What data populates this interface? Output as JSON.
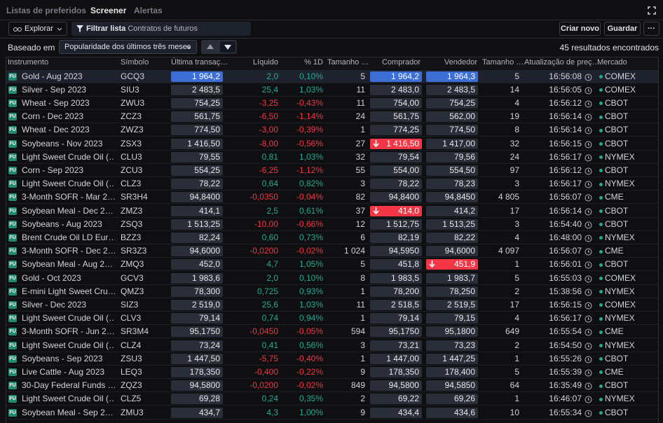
{
  "tabs": [
    "Listas de preferidos",
    "Screener",
    "Alertas"
  ],
  "active_tab": 1,
  "toolbar": {
    "explore": "Explorar",
    "filter_label": "Filtrar lista",
    "filter_value": "Contratos de futuros",
    "buttons": [
      "Criar novo",
      "Guardar",
      "···"
    ]
  },
  "based_on": {
    "label": "Baseado em",
    "value": "Popularidade dos últimos três meses",
    "results": "45 resultados encontrados"
  },
  "badge": "FU",
  "table": {
    "columns": [
      "Instrumento",
      "Símbolo",
      "Última transaç…",
      "Líquido",
      "% 1D",
      "Tamanho …",
      "Comprador",
      "Vendedor",
      "Tamanho …",
      "Atualização de preç…",
      "Mercado"
    ],
    "rows": [
      {
        "instrument": "Gold - Aug 2023",
        "symbol": "GCQ3",
        "last": "1 964,2",
        "net": "2,0",
        "pct": "0,10%",
        "size": "5",
        "bid": "1 964,2",
        "ask": "1 964,3",
        "ask_size": "5",
        "time": "16:56:08",
        "market": "COMEX",
        "selected": true,
        "highlight": {
          "last": "blue",
          "bid": "blue",
          "ask": "blue"
        }
      },
      {
        "instrument": "Silver - Sep 2023",
        "symbol": "SIU3",
        "last": "2 483,5",
        "net": "25,4",
        "pct": "1,03%",
        "size": "11",
        "bid": "2 483,0",
        "ask": "2 483,5",
        "ask_size": "14",
        "time": "16:56:05",
        "market": "COMEX"
      },
      {
        "instrument": "Wheat - Sep 2023",
        "symbol": "ZWU3",
        "last": "754,25",
        "net": "-3,25",
        "pct": "-0,43%",
        "size": "11",
        "bid": "754,00",
        "ask": "754,25",
        "ask_size": "4",
        "time": "16:56:12",
        "market": "CBOT"
      },
      {
        "instrument": "Corn - Dec 2023",
        "symbol": "ZCZ3",
        "last": "561,75",
        "net": "-6,50",
        "pct": "-1,14%",
        "size": "24",
        "bid": "561,75",
        "ask": "562,00",
        "ask_size": "19",
        "time": "16:56:14",
        "market": "CBOT"
      },
      {
        "instrument": "Wheat - Dec 2023",
        "symbol": "ZWZ3",
        "last": "774,50",
        "net": "-3,00",
        "pct": "-0,39%",
        "size": "1",
        "bid": "774,25",
        "ask": "774,50",
        "ask_size": "8",
        "time": "16:56:14",
        "market": "CBOT"
      },
      {
        "instrument": "Soybeans - Nov 2023",
        "symbol": "ZSX3",
        "last": "1 416,50",
        "net": "-8,00",
        "pct": "-0,56%",
        "size": "27",
        "bid": "1 416,50",
        "ask": "1 417,00",
        "ask_size": "32",
        "time": "16:56:15",
        "market": "CBOT",
        "highlight": {
          "bid": "down"
        }
      },
      {
        "instrument": "Light Sweet Crude Oil (…",
        "symbol": "CLU3",
        "last": "79,55",
        "net": "0,81",
        "pct": "1,03%",
        "size": "32",
        "bid": "79,54",
        "ask": "79,56",
        "ask_size": "24",
        "time": "16:56:17",
        "market": "NYMEX"
      },
      {
        "instrument": "Corn - Sep 2023",
        "symbol": "ZCU3",
        "last": "554,25",
        "net": "-6,25",
        "pct": "-1,12%",
        "size": "55",
        "bid": "554,00",
        "ask": "554,50",
        "ask_size": "97",
        "time": "16:56:12",
        "market": "CBOT"
      },
      {
        "instrument": "Light Sweet Crude Oil (…",
        "symbol": "CLZ3",
        "last": "78,22",
        "net": "0,64",
        "pct": "0,82%",
        "size": "3",
        "bid": "78,22",
        "ask": "78,23",
        "ask_size": "3",
        "time": "16:56:17",
        "market": "NYMEX"
      },
      {
        "instrument": "3-Month SOFR - Mar 2…",
        "symbol": "SR3H4",
        "last": "94,8400",
        "net": "-0,0350",
        "pct": "-0,04%",
        "size": "82",
        "bid": "94,8400",
        "ask": "94,8450",
        "ask_size": "4 805",
        "time": "16:56:07",
        "market": "CME"
      },
      {
        "instrument": "Soybean Meal - Dec 2…",
        "symbol": "ZMZ3",
        "last": "414,1",
        "net": "2,5",
        "pct": "0,61%",
        "size": "37",
        "bid": "414,0",
        "ask": "414,2",
        "ask_size": "17",
        "time": "16:56:14",
        "market": "CBOT",
        "highlight": {
          "bid": "down"
        }
      },
      {
        "instrument": "Soybeans - Aug 2023",
        "symbol": "ZSQ3",
        "last": "1 513,25",
        "net": "-10,00",
        "pct": "-0,66%",
        "size": "12",
        "bid": "1 512,75",
        "ask": "1 513,25",
        "ask_size": "3",
        "time": "16:54:40",
        "market": "CBOT"
      },
      {
        "instrument": "Brent Crude Oil LD Eur…",
        "symbol": "BZZ3",
        "last": "82,24",
        "net": "0,60",
        "pct": "0,73%",
        "size": "6",
        "bid": "82,19",
        "ask": "82,22",
        "ask_size": "4",
        "time": "16:48:00",
        "market": "NYMEX"
      },
      {
        "instrument": "3-Month SOFR - Dec 2…",
        "symbol": "SR3Z3",
        "last": "94,6000",
        "net": "-0,0200",
        "pct": "-0,02%",
        "size": "1 024",
        "bid": "94,5950",
        "ask": "94,6000",
        "ask_size": "4 097",
        "time": "16:56:07",
        "market": "CME"
      },
      {
        "instrument": "Soybean Meal - Aug 2…",
        "symbol": "ZMQ3",
        "last": "452,0",
        "net": "4,7",
        "pct": "1,05%",
        "size": "5",
        "bid": "451,8",
        "ask": "451,9",
        "ask_size": "1",
        "time": "16:56:01",
        "market": "CBOT",
        "highlight": {
          "ask": "down"
        }
      },
      {
        "instrument": "Gold - Oct 2023",
        "symbol": "GCV3",
        "last": "1 983,6",
        "net": "2,0",
        "pct": "0,10%",
        "size": "8",
        "bid": "1 983,5",
        "ask": "1 983,7",
        "ask_size": "5",
        "time": "16:55:03",
        "market": "COMEX"
      },
      {
        "instrument": "E-mini Light Sweet Cru…",
        "symbol": "QMZ3",
        "last": "78,300",
        "net": "0,725",
        "pct": "0,93%",
        "size": "1",
        "bid": "78,200",
        "ask": "78,250",
        "ask_size": "2",
        "time": "15:38:56",
        "market": "NYMEX"
      },
      {
        "instrument": "Silver - Dec 2023",
        "symbol": "SIZ3",
        "last": "2 519,0",
        "net": "25,6",
        "pct": "1,03%",
        "size": "11",
        "bid": "2 518,5",
        "ask": "2 519,5",
        "ask_size": "17",
        "time": "16:56:15",
        "market": "COMEX"
      },
      {
        "instrument": "Light Sweet Crude Oil (…",
        "symbol": "CLV3",
        "last": "79,14",
        "net": "0,74",
        "pct": "0,94%",
        "size": "1",
        "bid": "79,14",
        "ask": "79,15",
        "ask_size": "4",
        "time": "16:56:17",
        "market": "NYMEX"
      },
      {
        "instrument": "3-Month SOFR - Jun 2…",
        "symbol": "SR3M4",
        "last": "95,1750",
        "net": "-0,0450",
        "pct": "-0,05%",
        "size": "594",
        "bid": "95,1750",
        "ask": "95,1800",
        "ask_size": "649",
        "time": "16:55:54",
        "market": "CME"
      },
      {
        "instrument": "Light Sweet Crude Oil (…",
        "symbol": "CLZ4",
        "last": "73,24",
        "net": "0,41",
        "pct": "0,56%",
        "size": "3",
        "bid": "73,21",
        "ask": "73,23",
        "ask_size": "2",
        "time": "16:54:50",
        "market": "NYMEX"
      },
      {
        "instrument": "Soybeans - Sep 2023",
        "symbol": "ZSU3",
        "last": "1 447,50",
        "net": "-5,75",
        "pct": "-0,40%",
        "size": "1",
        "bid": "1 447,00",
        "ask": "1 447,25",
        "ask_size": "1",
        "time": "16:55:26",
        "market": "CBOT"
      },
      {
        "instrument": "Live Cattle - Aug 2023",
        "symbol": "LEQ3",
        "last": "178,350",
        "net": "-0,400",
        "pct": "-0,22%",
        "size": "9",
        "bid": "178,350",
        "ask": "178,400",
        "ask_size": "5",
        "time": "16:55:39",
        "market": "CME"
      },
      {
        "instrument": "30-Day Federal Funds …",
        "symbol": "ZQZ3",
        "last": "94,5800",
        "net": "-0,0200",
        "pct": "-0,02%",
        "size": "849",
        "bid": "94,5800",
        "ask": "94,5850",
        "ask_size": "64",
        "time": "16:35:49",
        "market": "CBOT"
      },
      {
        "instrument": "Light Sweet Crude Oil (…",
        "symbol": "CLZ5",
        "last": "69,28",
        "net": "0,24",
        "pct": "0,35%",
        "size": "2",
        "bid": "69,22",
        "ask": "69,26",
        "ask_size": "1",
        "time": "16:46:07",
        "market": "NYMEX"
      },
      {
        "instrument": "Soybean Meal - Sep 2…",
        "symbol": "ZMU3",
        "last": "434,7",
        "net": "4,3",
        "pct": "1,00%",
        "size": "9",
        "bid": "434,4",
        "ask": "434,6",
        "ask_size": "10",
        "time": "16:55:34",
        "market": "CBOT"
      }
    ]
  }
}
